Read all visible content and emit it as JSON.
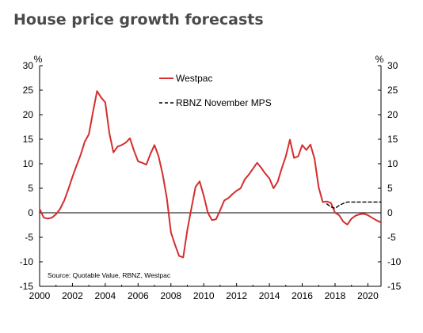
{
  "title": "House price growth forecasts",
  "chart_data": {
    "type": "line",
    "title": "House price growth forecasts",
    "left_unit": "%",
    "right_unit": "%",
    "xlim": [
      2000,
      2020.8
    ],
    "ylim": [
      -15,
      30
    ],
    "x_ticks": [
      2000,
      2002,
      2004,
      2006,
      2008,
      2010,
      2012,
      2014,
      2016,
      2018,
      2020
    ],
    "y_ticks": [
      30,
      25,
      20,
      15,
      10,
      5,
      0,
      -5,
      -10,
      -15
    ],
    "grid": false,
    "legend_position": "top-center",
    "source_note": "Source: Quotable Value, RBNZ, Westpac",
    "series": [
      {
        "name": "Westpac",
        "color": "#d42e2e",
        "style": "solid",
        "points": [
          [
            2000.0,
            0.8
          ],
          [
            2000.25,
            -1.0
          ],
          [
            2000.5,
            -1.2
          ],
          [
            2000.75,
            -1.0
          ],
          [
            2001.0,
            -0.3
          ],
          [
            2001.25,
            0.8
          ],
          [
            2001.5,
            2.5
          ],
          [
            2001.75,
            4.8
          ],
          [
            2002.0,
            7.3
          ],
          [
            2002.25,
            9.6
          ],
          [
            2002.5,
            11.8
          ],
          [
            2002.75,
            14.5
          ],
          [
            2003.0,
            16.0
          ],
          [
            2003.25,
            20.5
          ],
          [
            2003.5,
            24.8
          ],
          [
            2003.75,
            23.5
          ],
          [
            2004.0,
            22.5
          ],
          [
            2004.25,
            16.2
          ],
          [
            2004.5,
            12.3
          ],
          [
            2004.75,
            13.5
          ],
          [
            2005.0,
            13.8
          ],
          [
            2005.25,
            14.3
          ],
          [
            2005.5,
            15.2
          ],
          [
            2005.75,
            12.7
          ],
          [
            2006.0,
            10.5
          ],
          [
            2006.25,
            10.2
          ],
          [
            2006.5,
            9.8
          ],
          [
            2006.75,
            12.0
          ],
          [
            2007.0,
            13.8
          ],
          [
            2007.25,
            11.5
          ],
          [
            2007.5,
            7.8
          ],
          [
            2007.75,
            3.0
          ],
          [
            2008.0,
            -4.0
          ],
          [
            2008.25,
            -6.5
          ],
          [
            2008.5,
            -8.8
          ],
          [
            2008.75,
            -9.1
          ],
          [
            2009.0,
            -3.5
          ],
          [
            2009.25,
            1.0
          ],
          [
            2009.5,
            5.3
          ],
          [
            2009.75,
            6.4
          ],
          [
            2010.0,
            3.5
          ],
          [
            2010.25,
            0.0
          ],
          [
            2010.5,
            -1.5
          ],
          [
            2010.75,
            -1.3
          ],
          [
            2011.0,
            0.5
          ],
          [
            2011.25,
            2.5
          ],
          [
            2011.5,
            3.0
          ],
          [
            2011.75,
            3.8
          ],
          [
            2012.0,
            4.5
          ],
          [
            2012.25,
            5.0
          ],
          [
            2012.5,
            6.8
          ],
          [
            2012.75,
            7.8
          ],
          [
            2013.0,
            9.0
          ],
          [
            2013.25,
            10.2
          ],
          [
            2013.5,
            9.2
          ],
          [
            2013.75,
            8.0
          ],
          [
            2014.0,
            7.0
          ],
          [
            2014.25,
            5.0
          ],
          [
            2014.5,
            6.3
          ],
          [
            2014.75,
            9.0
          ],
          [
            2015.0,
            11.5
          ],
          [
            2015.25,
            14.9
          ],
          [
            2015.5,
            11.2
          ],
          [
            2015.75,
            11.5
          ],
          [
            2016.0,
            13.8
          ],
          [
            2016.25,
            12.8
          ],
          [
            2016.5,
            13.9
          ],
          [
            2016.75,
            11.0
          ],
          [
            2017.0,
            5.2
          ],
          [
            2017.25,
            2.2
          ],
          [
            2017.5,
            2.3
          ],
          [
            2017.75,
            2.0
          ],
          [
            2018.0,
            0.0
          ],
          [
            2018.25,
            -0.5
          ],
          [
            2018.5,
            -1.8
          ],
          [
            2018.75,
            -2.4
          ],
          [
            2019.0,
            -1.2
          ],
          [
            2019.25,
            -0.6
          ],
          [
            2019.5,
            -0.3
          ],
          [
            2019.75,
            -0.2
          ],
          [
            2020.0,
            -0.5
          ],
          [
            2020.25,
            -1.0
          ],
          [
            2020.5,
            -1.5
          ],
          [
            2020.75,
            -1.9
          ]
        ]
      },
      {
        "name": "RBNZ November MPS",
        "color": "#000000",
        "style": "dashed",
        "points": [
          [
            2017.5,
            1.8
          ],
          [
            2017.75,
            1.2
          ],
          [
            2018.0,
            0.9
          ],
          [
            2018.25,
            1.5
          ],
          [
            2018.5,
            1.9
          ],
          [
            2018.75,
            2.2
          ],
          [
            2019.0,
            2.2
          ],
          [
            2019.5,
            2.2
          ],
          [
            2020.0,
            2.2
          ],
          [
            2020.5,
            2.2
          ],
          [
            2020.8,
            2.2
          ]
        ]
      }
    ]
  }
}
